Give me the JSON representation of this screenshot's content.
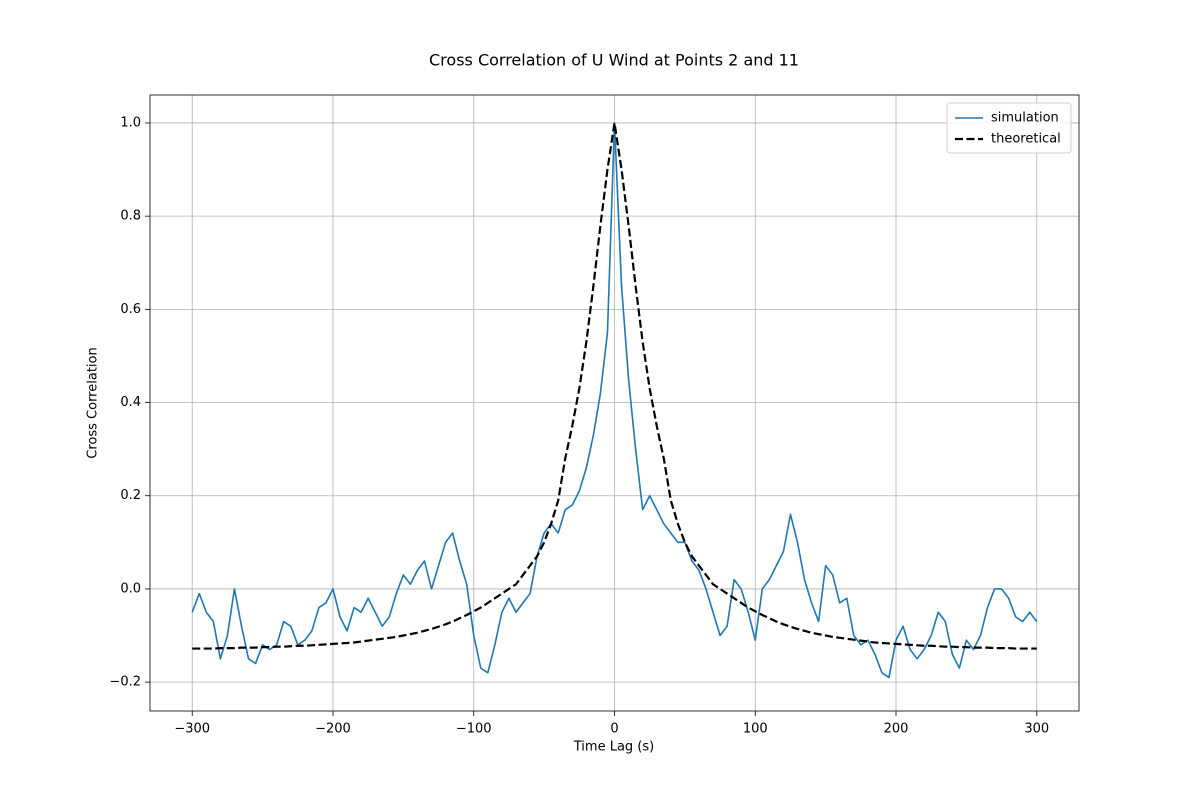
{
  "chart_data": {
    "type": "line",
    "title": "Cross Correlation of U Wind at Points 2 and 11",
    "x_label": "Time Lag (s)",
    "y_label": "Cross Correlation",
    "x": [
      -300,
      -295,
      -290,
      -285,
      -280,
      -275,
      -270,
      -265,
      -260,
      -255,
      -250,
      -245,
      -240,
      -235,
      -230,
      -225,
      -220,
      -215,
      -210,
      -205,
      -200,
      -195,
      -190,
      -185,
      -180,
      -175,
      -170,
      -165,
      -160,
      -155,
      -150,
      -145,
      -140,
      -135,
      -130,
      -125,
      -120,
      -115,
      -110,
      -105,
      -100,
      -95,
      -90,
      -85,
      -80,
      -75,
      -70,
      -65,
      -60,
      -55,
      -50,
      -45,
      -40,
      -35,
      -30,
      -25,
      -20,
      -15,
      -10,
      -5,
      0,
      5,
      10,
      15,
      20,
      25,
      30,
      35,
      40,
      45,
      50,
      55,
      60,
      65,
      70,
      75,
      80,
      85,
      90,
      95,
      100,
      105,
      110,
      115,
      120,
      125,
      130,
      135,
      140,
      145,
      150,
      155,
      160,
      165,
      170,
      175,
      180,
      185,
      190,
      195,
      200,
      205,
      210,
      215,
      220,
      225,
      230,
      235,
      240,
      245,
      250,
      255,
      260,
      265,
      270,
      275,
      280,
      285,
      290,
      295,
      300
    ],
    "series": [
      {
        "name": "simulation",
        "color": "#1f77b4",
        "style": "solid",
        "values": [
          -0.05,
          -0.01,
          -0.05,
          -0.07,
          -0.15,
          -0.1,
          0.0,
          -0.08,
          -0.15,
          -0.16,
          -0.12,
          -0.13,
          -0.12,
          -0.07,
          -0.08,
          -0.12,
          -0.11,
          -0.09,
          -0.04,
          -0.03,
          0.0,
          -0.06,
          -0.09,
          -0.04,
          -0.05,
          -0.02,
          -0.05,
          -0.08,
          -0.06,
          -0.01,
          0.03,
          0.01,
          0.04,
          0.06,
          0.0,
          0.05,
          0.1,
          0.12,
          0.06,
          0.01,
          -0.1,
          -0.17,
          -0.18,
          -0.12,
          -0.05,
          -0.02,
          -0.05,
          -0.03,
          -0.01,
          0.07,
          0.12,
          0.14,
          0.12,
          0.17,
          0.18,
          0.21,
          0.26,
          0.33,
          0.42,
          0.55,
          1.0,
          0.65,
          0.45,
          0.3,
          0.17,
          0.2,
          0.17,
          0.14,
          0.12,
          0.1,
          0.1,
          0.06,
          0.04,
          0.0,
          -0.05,
          -0.1,
          -0.08,
          0.02,
          0.0,
          -0.05,
          -0.11,
          0.0,
          0.02,
          0.05,
          0.08,
          0.16,
          0.1,
          0.02,
          -0.03,
          -0.07,
          0.05,
          0.03,
          -0.03,
          -0.02,
          -0.1,
          -0.12,
          -0.11,
          -0.14,
          -0.18,
          -0.19,
          -0.11,
          -0.08,
          -0.13,
          -0.15,
          -0.13,
          -0.1,
          -0.05,
          -0.07,
          -0.14,
          -0.17,
          -0.11,
          -0.13,
          -0.1,
          -0.04,
          0.0,
          0.0,
          -0.02,
          -0.06,
          -0.07,
          -0.05,
          -0.07
        ]
      },
      {
        "name": "theoretical",
        "color": "#000000",
        "style": "dashed",
        "values": [
          -0.128,
          -0.128,
          -0.128,
          -0.128,
          -0.127,
          -0.127,
          -0.127,
          -0.126,
          -0.126,
          -0.126,
          -0.125,
          -0.125,
          -0.124,
          -0.124,
          -0.123,
          -0.122,
          -0.122,
          -0.121,
          -0.12,
          -0.119,
          -0.118,
          -0.117,
          -0.116,
          -0.115,
          -0.113,
          -0.111,
          -0.109,
          -0.107,
          -0.105,
          -0.103,
          -0.1,
          -0.097,
          -0.094,
          -0.09,
          -0.086,
          -0.081,
          -0.076,
          -0.07,
          -0.063,
          -0.056,
          -0.048,
          -0.04,
          -0.03,
          -0.02,
          -0.01,
          0.0,
          0.01,
          0.03,
          0.05,
          0.07,
          0.1,
          0.14,
          0.19,
          0.28,
          0.35,
          0.43,
          0.53,
          0.65,
          0.78,
          0.9,
          1.0,
          0.9,
          0.78,
          0.65,
          0.53,
          0.43,
          0.35,
          0.28,
          0.19,
          0.14,
          0.1,
          0.07,
          0.05,
          0.03,
          0.01,
          0.0,
          -0.01,
          -0.02,
          -0.03,
          -0.04,
          -0.048,
          -0.056,
          -0.063,
          -0.07,
          -0.076,
          -0.081,
          -0.086,
          -0.09,
          -0.094,
          -0.097,
          -0.1,
          -0.103,
          -0.105,
          -0.107,
          -0.109,
          -0.111,
          -0.113,
          -0.115,
          -0.116,
          -0.117,
          -0.118,
          -0.119,
          -0.12,
          -0.121,
          -0.122,
          -0.122,
          -0.123,
          -0.124,
          -0.124,
          -0.125,
          -0.125,
          -0.126,
          -0.126,
          -0.126,
          -0.127,
          -0.127,
          -0.127,
          -0.128,
          -0.128,
          -0.128,
          -0.128
        ]
      }
    ],
    "xlim": [
      -330,
      330
    ],
    "ylim": [
      -0.262,
      1.06
    ],
    "xticks": [
      {
        "value": -300,
        "label": "−300"
      },
      {
        "value": -200,
        "label": "−200"
      },
      {
        "value": -100,
        "label": "−100"
      },
      0,
      100,
      200,
      300
    ],
    "yticks": [
      {
        "value": -0.2,
        "label": "−0.2"
      },
      {
        "value": 0,
        "label": "0.0"
      },
      0.2,
      0.4,
      0.6,
      0.8,
      {
        "value": 1,
        "label": "1.0"
      }
    ],
    "grid": true,
    "legend": "upper-right"
  }
}
